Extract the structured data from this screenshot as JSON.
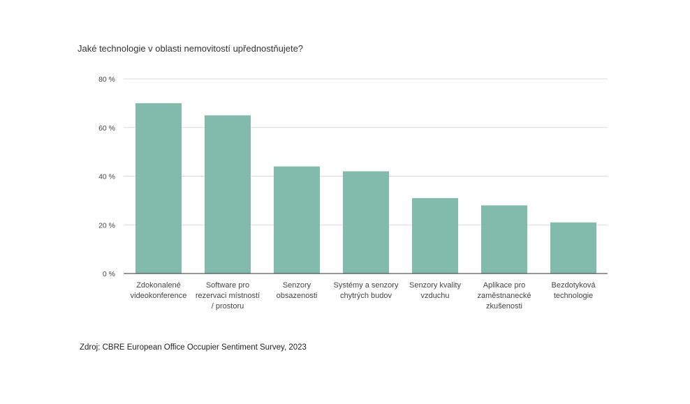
{
  "chart_data": {
    "type": "bar",
    "title": "Jaké technologie v oblasti nemovitostí upřednostňujete?",
    "categories": [
      [
        "Zdokonalené",
        "videokonference"
      ],
      [
        "Software pro",
        "rezervaci místností",
        "/ prostoru"
      ],
      [
        "Senzory",
        "obsazenosti"
      ],
      [
        "Systémy a senzory",
        "chytrých budov"
      ],
      [
        "Senzory kvality",
        "vzduchu"
      ],
      [
        "Aplikace pro",
        "zaměstnanecké",
        "zkušenosti"
      ],
      [
        "Bezdotyková",
        "technologie"
      ]
    ],
    "values": [
      70,
      65,
      44,
      42,
      31,
      28,
      21
    ],
    "yticks": [
      "0 %",
      "20 %",
      "40 %",
      "60 %",
      "80 %"
    ],
    "ytick_values": [
      0,
      20,
      40,
      60,
      80
    ],
    "ylim": [
      0,
      80
    ],
    "grid": true,
    "bar_color": "#82bbab",
    "gridline_color": "#d9d9d9",
    "axis_color": "#333333"
  },
  "source": "Zdroj: CBRE European Office Occupier Sentiment Survey, 2023"
}
